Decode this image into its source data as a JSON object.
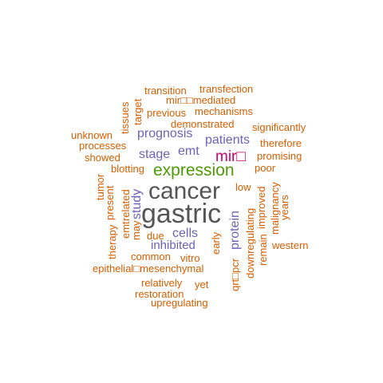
{
  "colors": {
    "largest": "#555555",
    "second": "#4e9a06",
    "third": "#d1006a",
    "mid": "#6a63b5",
    "small": "#d55e00"
  },
  "words": [
    {
      "text": "cancer",
      "color": "#555555"
    },
    {
      "text": "gastric",
      "color": "#555555"
    },
    {
      "text": "expression",
      "color": "#4e9a06"
    },
    {
      "text": "mir□",
      "color": "#d1006a"
    },
    {
      "text": "patients",
      "color": "#6a63b5"
    },
    {
      "text": "prognosis",
      "color": "#6a63b5"
    },
    {
      "text": "stage",
      "color": "#6a63b5"
    },
    {
      "text": "emt",
      "color": "#6a63b5"
    },
    {
      "text": "cells",
      "color": "#6a63b5"
    },
    {
      "text": "inhibited",
      "color": "#6a63b5"
    },
    {
      "text": "study",
      "color": "#6a63b5"
    },
    {
      "text": "protein",
      "color": "#6a63b5"
    },
    {
      "text": "transition",
      "color": "#d55e00"
    },
    {
      "text": "transfection",
      "color": "#d55e00"
    },
    {
      "text": "mir□□mediated",
      "color": "#d55e00"
    },
    {
      "text": "previous",
      "color": "#d55e00"
    },
    {
      "text": "mechanisms",
      "color": "#d55e00"
    },
    {
      "text": "demonstrated",
      "color": "#d55e00"
    },
    {
      "text": "significantly",
      "color": "#d55e00"
    },
    {
      "text": "unknown",
      "color": "#d55e00"
    },
    {
      "text": "processes",
      "color": "#d55e00"
    },
    {
      "text": "therefore",
      "color": "#d55e00"
    },
    {
      "text": "showed",
      "color": "#d55e00"
    },
    {
      "text": "promising",
      "color": "#d55e00"
    },
    {
      "text": "blotting",
      "color": "#d55e00"
    },
    {
      "text": "poor",
      "color": "#d55e00"
    },
    {
      "text": "low",
      "color": "#d55e00"
    },
    {
      "text": "tissues",
      "color": "#d55e00"
    },
    {
      "text": "target",
      "color": "#d55e00"
    },
    {
      "text": "tumor",
      "color": "#d55e00"
    },
    {
      "text": "present",
      "color": "#d55e00"
    },
    {
      "text": "related",
      "color": "#d55e00"
    },
    {
      "text": "emt",
      "color": "#d55e00"
    },
    {
      "text": "may",
      "color": "#d55e00"
    },
    {
      "text": "therapy",
      "color": "#d55e00"
    },
    {
      "text": "improved",
      "color": "#d55e00"
    },
    {
      "text": "malignancy",
      "color": "#d55e00"
    },
    {
      "text": "years",
      "color": "#d55e00"
    },
    {
      "text": "remain",
      "color": "#d55e00"
    },
    {
      "text": "downregulating",
      "color": "#d55e00"
    },
    {
      "text": "qrt□pcr",
      "color": "#d55e00"
    },
    {
      "text": "early",
      "color": "#d55e00"
    },
    {
      "text": "due",
      "color": "#d55e00"
    },
    {
      "text": "vitro",
      "color": "#d55e00"
    },
    {
      "text": "common",
      "color": "#d55e00"
    },
    {
      "text": "western",
      "color": "#d55e00"
    },
    {
      "text": "epithelial□mesenchymal",
      "color": "#d55e00"
    },
    {
      "text": "relatively",
      "color": "#d55e00"
    },
    {
      "text": "yet",
      "color": "#d55e00"
    },
    {
      "text": "restoration",
      "color": "#d55e00"
    },
    {
      "text": "upregulating",
      "color": "#d55e00"
    }
  ]
}
